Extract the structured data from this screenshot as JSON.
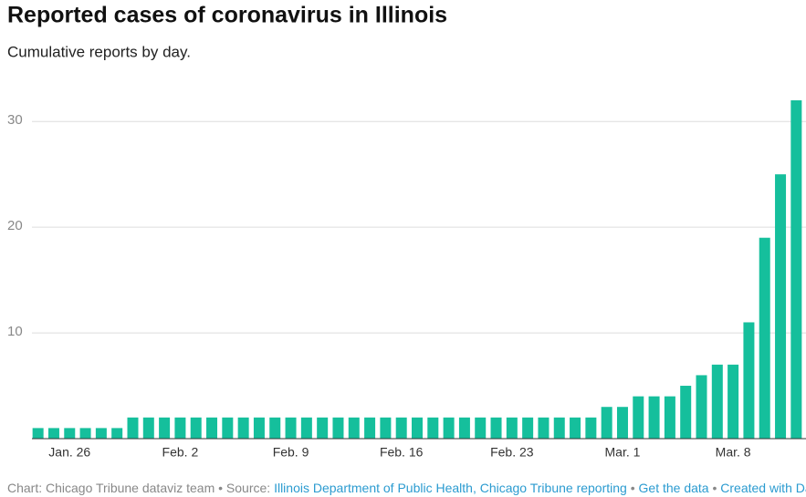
{
  "chart_data": {
    "type": "bar",
    "title": "Reported cases of coronavirus in Illinois",
    "subtitle": "Cumulative reports by day.",
    "categories": [
      null,
      null,
      "Jan. 26",
      null,
      null,
      null,
      null,
      null,
      null,
      "Feb. 2",
      null,
      null,
      null,
      null,
      null,
      null,
      "Feb. 9",
      null,
      null,
      null,
      null,
      null,
      null,
      "Feb. 16",
      null,
      null,
      null,
      null,
      null,
      null,
      "Feb. 23",
      null,
      null,
      null,
      null,
      null,
      null,
      "Mar. 1",
      null,
      null,
      null,
      null,
      null,
      null,
      "Mar. 8",
      null,
      null,
      null,
      null
    ],
    "values": [
      1,
      1,
      1,
      1,
      1,
      1,
      2,
      2,
      2,
      2,
      2,
      2,
      2,
      2,
      2,
      2,
      2,
      2,
      2,
      2,
      2,
      2,
      2,
      2,
      2,
      2,
      2,
      2,
      2,
      2,
      2,
      2,
      2,
      2,
      2,
      2,
      3,
      3,
      4,
      4,
      4,
      5,
      6,
      7,
      7,
      11,
      19,
      25,
      32
    ],
    "color": "#15bf9c",
    "ylim": [
      0,
      32
    ],
    "yticks": [
      10,
      20,
      30
    ],
    "grid": true
  },
  "footer": {
    "credit": "Chart: Chicago Tribune dataviz team",
    "separator": "•",
    "source_label": "Source:",
    "source": "Illinois Department of Public Health, Chicago Tribune reporting",
    "get_data": "Get the data",
    "created": "Created with Datawrapper"
  }
}
